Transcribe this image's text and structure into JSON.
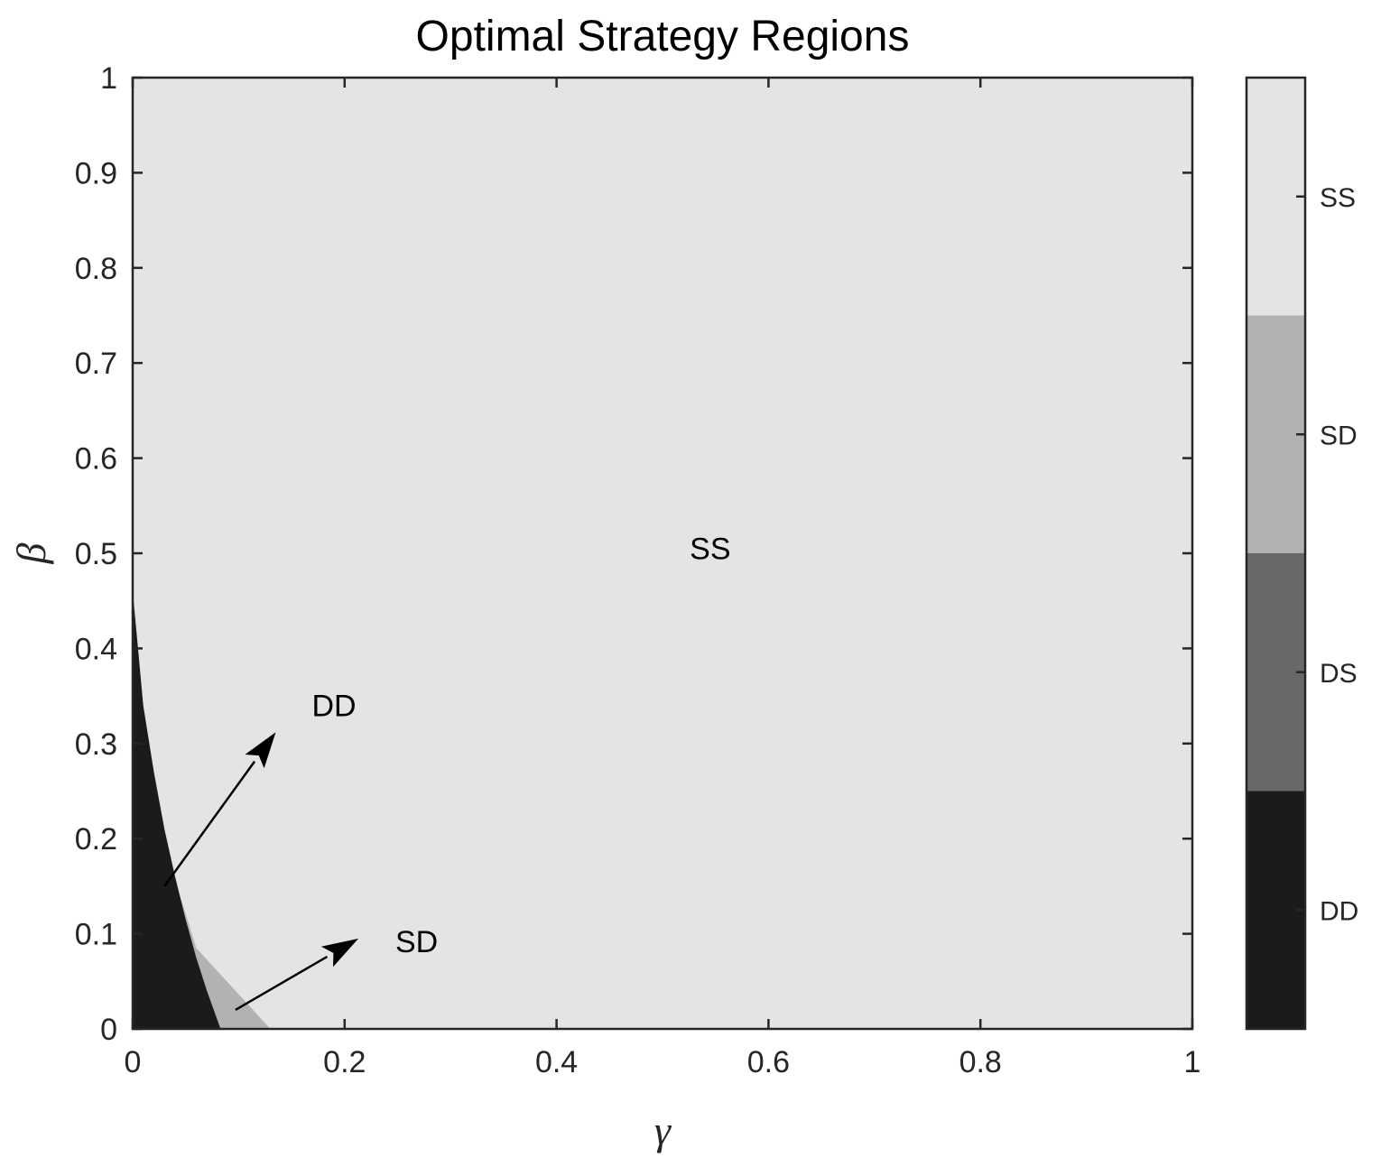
{
  "chart_data": {
    "type": "heatmap",
    "title": "Optimal Strategy Regions",
    "xlabel": "γ",
    "ylabel": "β",
    "xlim": [
      0,
      1
    ],
    "ylim": [
      0,
      1
    ],
    "x_ticks": [
      0,
      0.2,
      0.4,
      0.6,
      0.8,
      1
    ],
    "x_tick_labels": [
      "0",
      "0.2",
      "0.4",
      "0.6",
      "0.8",
      "1"
    ],
    "y_ticks": [
      0,
      0.1,
      0.2,
      0.3,
      0.4,
      0.5,
      0.6,
      0.7,
      0.8,
      0.9,
      1
    ],
    "y_tick_labels": [
      "0",
      "0.1",
      "0.2",
      "0.3",
      "0.4",
      "0.5",
      "0.6",
      "0.7",
      "0.8",
      "0.9",
      "1"
    ],
    "grid": false,
    "colorbar": {
      "levels": [
        {
          "label": "DD",
          "color": "#1b1b1b"
        },
        {
          "label": "DS",
          "color": "#686868"
        },
        {
          "label": "SD",
          "color": "#b2b2b2"
        },
        {
          "label": "SS",
          "color": "#e4e4e4"
        }
      ]
    },
    "background_region": "SS",
    "regions": [
      {
        "strategy": "SD",
        "boundary": [
          [
            0,
            0
          ],
          [
            0,
            0.3
          ],
          [
            0.06,
            0.085
          ],
          [
            0.13,
            0
          ]
        ]
      },
      {
        "strategy": "DD",
        "boundary": [
          [
            0,
            0
          ],
          [
            0,
            0.46
          ],
          [
            0.005,
            0.4
          ],
          [
            0.01,
            0.34
          ],
          [
            0.02,
            0.27
          ],
          [
            0.03,
            0.21
          ],
          [
            0.04,
            0.16
          ],
          [
            0.05,
            0.115
          ],
          [
            0.06,
            0.075
          ],
          [
            0.07,
            0.04
          ],
          [
            0.083,
            0
          ]
        ]
      }
    ],
    "annotations": [
      {
        "text": "SS",
        "x": 0.545,
        "y": 0.505
      },
      {
        "text": "DD",
        "x": 0.19,
        "y": 0.34,
        "arrow_from": [
          0.03,
          0.15
        ],
        "arrow_to": [
          0.135,
          0.312
        ]
      },
      {
        "text": "SD",
        "x": 0.268,
        "y": 0.092,
        "arrow_from": [
          0.097,
          0.02
        ],
        "arrow_to": [
          0.213,
          0.095
        ]
      }
    ]
  }
}
